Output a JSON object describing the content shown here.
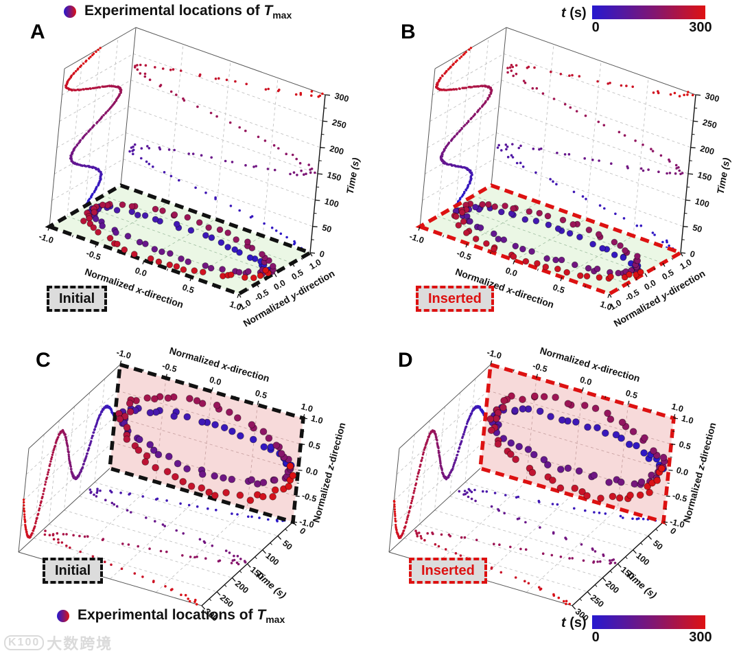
{
  "figure": {
    "legend": {
      "marker": "blue-red-gradient-dot",
      "text": "Experimental locations of ",
      "variable": "T",
      "subscript": "max"
    },
    "colorbar": {
      "variable": "t",
      "unit": " (s)",
      "min_label": "0",
      "max_label": "300"
    },
    "watermark": {
      "logo": "K100",
      "text": "大数跨境"
    }
  },
  "chart_data": {
    "type": "scatter3d",
    "description": "Four 3D scatter panels showing experimental locations of maximum temperature over time. Points trace an oval trajectory (2 loops) in the normalized plane over 0-300 s, colored blue (t=0) to red (t=300). Wall/floor projections show the same trajectory versus time. Panels A/C: Initial configuration (black dashed plane border); Panels B/D: Inserted configuration (red dashed plane border).",
    "time_axis": {
      "label": "Time (s)",
      "range": [
        0,
        300
      ],
      "ticks": [
        0,
        50,
        100,
        150,
        200,
        250,
        300
      ]
    },
    "colormap": {
      "start": "#2619cf",
      "end": "#de1212",
      "min": 0,
      "max": 300
    },
    "trajectory": {
      "n_points": 112,
      "loops": 2,
      "x_amplitude": 0.92,
      "transverse_amplitude_start": 0.3,
      "transverse_amplitude_end": 0.98,
      "jitter": 0.05,
      "time_range": [
        0,
        300
      ]
    },
    "panels": [
      {
        "letter": "A",
        "badge": "Initial",
        "badge_color": "#111111",
        "view": "floor",
        "border_color": "#111111",
        "plane_fill": "#e9f6e3",
        "seed": 11,
        "x_axis": {
          "label": "Normalized |x|-direction",
          "tick_values": [
            -1,
            -0.5,
            0,
            0.5,
            1
          ],
          "tick_labels": [
            "-1.0",
            "-0.5",
            "0.0",
            "0.5",
            "1.0"
          ]
        },
        "v_axis": {
          "label": "Normalized |y|-direction",
          "tick_values": [
            -1,
            -0.5,
            0,
            0.5,
            1
          ],
          "tick_labels": [
            "-1.0",
            "-0.5",
            "0.0",
            "0.5",
            "1.0"
          ]
        }
      },
      {
        "letter": "B",
        "badge": "Inserted",
        "badge_color": "#dd1111",
        "view": "floor",
        "border_color": "#dd1111",
        "plane_fill": "#e9f6e3",
        "seed": 23,
        "x_axis": {
          "label": "Normalized |x|-direction",
          "tick_values": [
            -1,
            -0.5,
            0,
            0.5,
            1
          ],
          "tick_labels": [
            "-1.0",
            "-0.5",
            "0.0",
            "0.5",
            "1.0"
          ]
        },
        "v_axis": {
          "label": "Normalized |y|-direction",
          "tick_values": [
            -1,
            -0.5,
            0,
            0.5,
            1
          ],
          "tick_labels": [
            "-1.0",
            "-0.5",
            "0.0",
            "0.5",
            "1.0"
          ]
        }
      },
      {
        "letter": "C",
        "badge": "Initial",
        "badge_color": "#111111",
        "view": "back",
        "border_color": "#111111",
        "plane_fill": "#f6d8d8",
        "seed": 37,
        "x_axis": {
          "label": "Normalized |x|-direction",
          "tick_values": [
            -1,
            -0.5,
            0,
            0.5,
            1
          ],
          "tick_labels": [
            "-1.0",
            "-0.5",
            "0.0",
            "0.5",
            "1.0"
          ]
        },
        "v_axis": {
          "label": "Normalized |z|-direction",
          "tick_values": [
            -1,
            -0.5,
            0,
            0.5,
            1
          ],
          "tick_labels": [
            "-1.0",
            "-0.5",
            "0.0",
            "0.5",
            "1.0"
          ]
        }
      },
      {
        "letter": "D",
        "badge": "Inserted",
        "badge_color": "#dd1111",
        "view": "back",
        "border_color": "#dd1111",
        "plane_fill": "#f6d8d8",
        "seed": 49,
        "x_axis": {
          "label": "Normalized |x|-direction",
          "tick_values": [
            -1,
            -0.5,
            0,
            0.5,
            1
          ],
          "tick_labels": [
            "-1.0",
            "-0.5",
            "0.0",
            "0.5",
            "1.0"
          ]
        },
        "v_axis": {
          "label": "Normalized |z|-direction",
          "tick_values": [
            -1,
            -0.5,
            0,
            0.5,
            1
          ],
          "tick_labels": [
            "-1.0",
            "-0.5",
            "0.0",
            "0.5",
            "1.0"
          ]
        }
      }
    ]
  }
}
